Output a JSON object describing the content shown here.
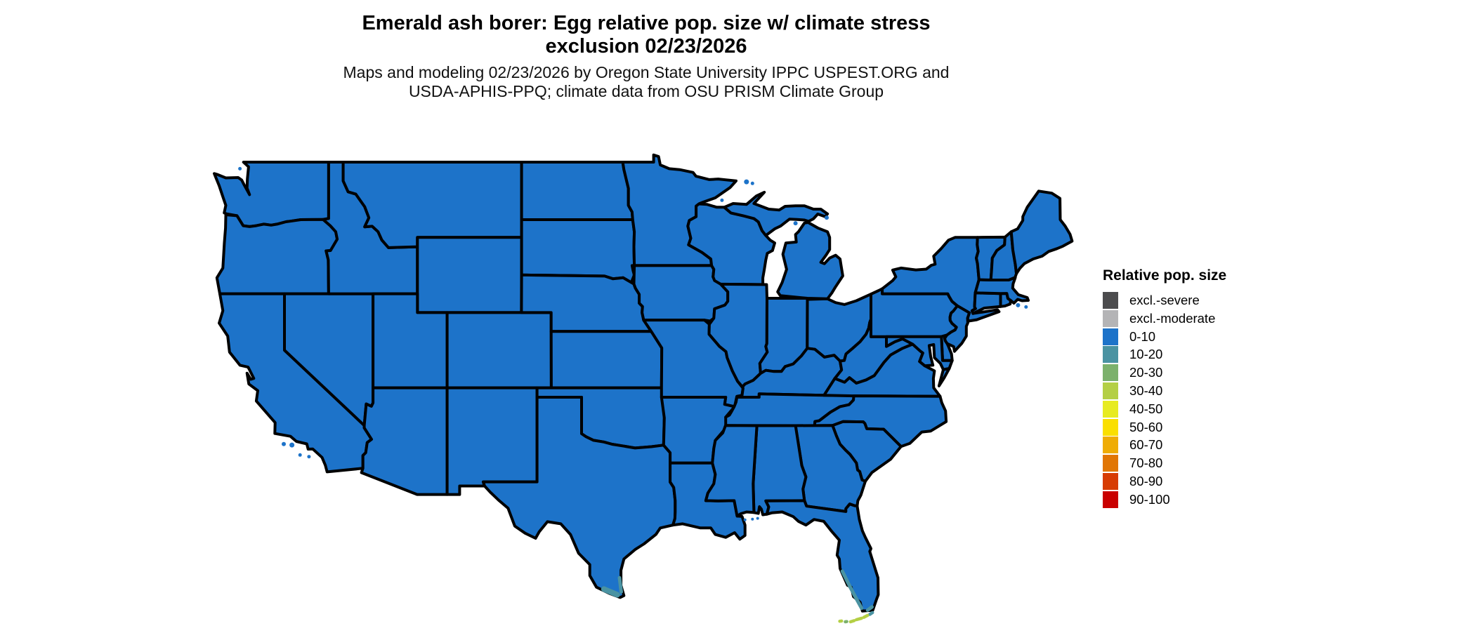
{
  "title": {
    "line1": "Emerald ash borer: Egg relative pop. size w/ climate stress",
    "line2": "exclusion 02/23/2026"
  },
  "subtitle": {
    "line1": "Maps and modeling 02/23/2026 by Oregon State University IPPC USPEST.ORG and",
    "line2": "USDA-APHIS-PPQ; climate data from OSU PRISM Climate Group"
  },
  "legend": {
    "title": "Relative pop. size",
    "entries": [
      {
        "label": "excl.-severe",
        "color": "#4c4c4e"
      },
      {
        "label": "excl.-moderate",
        "color": "#b4b4b6"
      },
      {
        "label": "0-10",
        "color": "#1d73c9"
      },
      {
        "label": "10-20",
        "color": "#4a93a2"
      },
      {
        "label": "20-30",
        "color": "#7cb16c"
      },
      {
        "label": "30-40",
        "color": "#b4cf45"
      },
      {
        "label": "40-50",
        "color": "#e7eb21"
      },
      {
        "label": "50-60",
        "color": "#fadf00"
      },
      {
        "label": "60-70",
        "color": "#efac04"
      },
      {
        "label": "70-80",
        "color": "#e17604"
      },
      {
        "label": "80-90",
        "color": "#d73c03"
      },
      {
        "label": "90-100",
        "color": "#c90000"
      }
    ]
  },
  "map": {
    "background": "#ffffff",
    "fill": "#1d73c9",
    "border": "#000000"
  },
  "chart_data": {
    "type": "choropleth-map",
    "region": "contiguous United States",
    "variable": "Relative pop. size (Emerald ash borer egg, with climate stress exclusion)",
    "date": "02/23/2026",
    "classes": [
      "excl.-severe",
      "excl.-moderate",
      "0-10",
      "10-20",
      "20-30",
      "30-40",
      "40-50",
      "50-60",
      "60-70",
      "70-80",
      "80-90",
      "90-100"
    ],
    "class_colors": [
      "#4c4c4e",
      "#b4b4b6",
      "#1d73c9",
      "#4a93a2",
      "#7cb16c",
      "#b4cf45",
      "#e7eb21",
      "#fadf00",
      "#efac04",
      "#e17604",
      "#d73c03",
      "#c90000"
    ],
    "observations": [
      {
        "area": "contiguous US (nearly all states)",
        "class": "0-10"
      },
      {
        "area": "southwest Florida coast and southern tip",
        "class": "10-20"
      },
      {
        "area": "upper Florida Keys",
        "class": "10-20"
      },
      {
        "area": "middle and lower Florida Keys",
        "class": "30-40"
      },
      {
        "area": "westernmost Florida Keys speck",
        "class": "20-30"
      },
      {
        "area": "south Texas tip (Brownsville area)",
        "class": "10-20"
      }
    ],
    "legend_position": "right",
    "grid": false
  }
}
